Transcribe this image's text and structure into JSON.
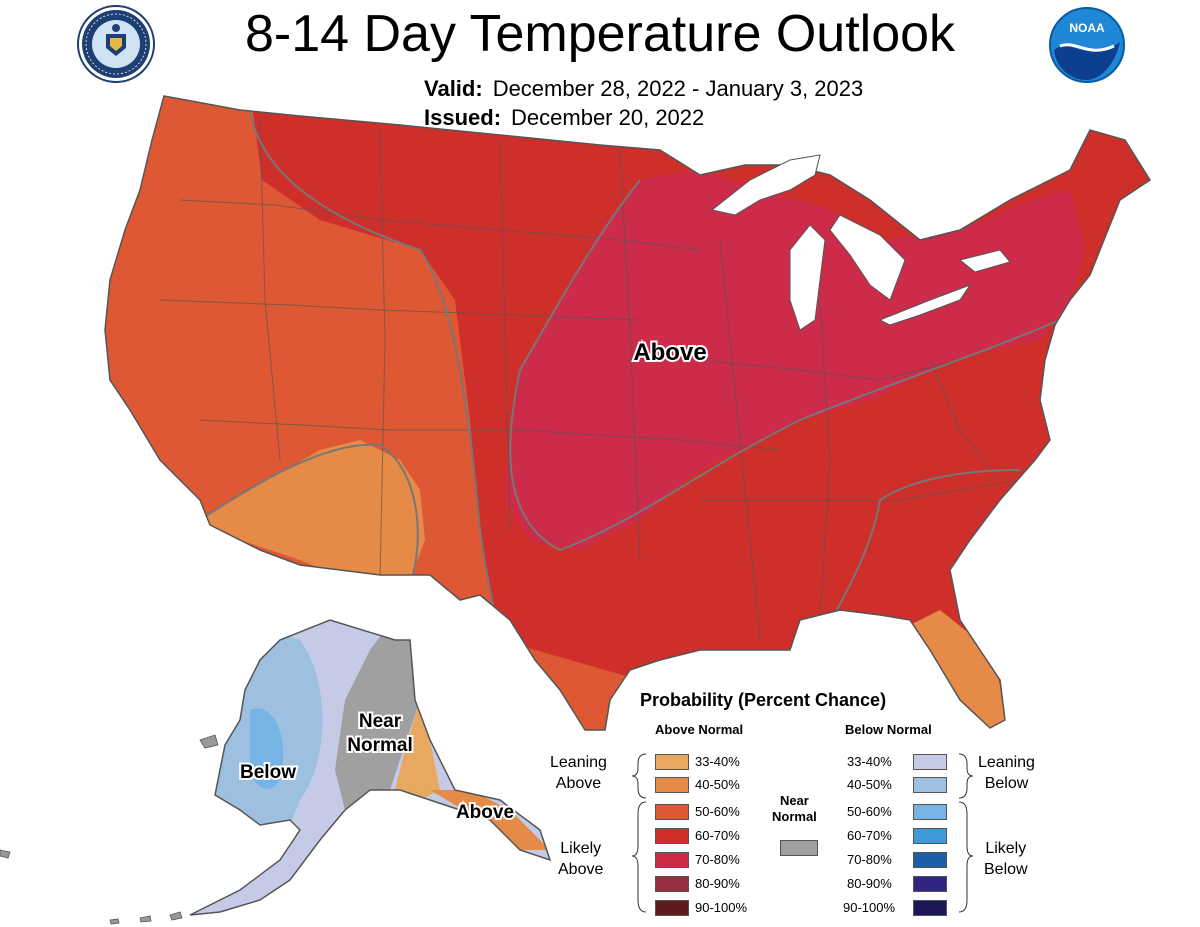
{
  "header": {
    "title": "8-14 Day Temperature Outlook",
    "valid_label": "Valid:",
    "valid_value": "December 28, 2022 - January 3, 2023",
    "issued_label": "Issued:",
    "issued_value": "December 20, 2022"
  },
  "logos": {
    "left": "doc-seal",
    "right": "noaa-logo",
    "noaa_text": "NOAA"
  },
  "map": {
    "region_labels": {
      "conus_above": "Above",
      "alaska_below": "Below",
      "alaska_near_normal_line1": "Near",
      "alaska_near_normal_line2": "Normal",
      "alaska_above": "Above"
    },
    "colors": {
      "above_33_40": "#e8a860",
      "above_40_50": "#e68a48",
      "above_50_60": "#df5834",
      "above_60_70": "#cf2f2a",
      "above_70_80": "#cd2b4a",
      "above_80_90": "#963040",
      "above_90_100": "#5f1a20",
      "below_33_40": "#c5cbe6",
      "below_40_50": "#9dbfe0",
      "below_50_60": "#75b4e5",
      "below_60_70": "#3e9ad8",
      "below_70_80": "#1a5fa8",
      "below_80_90": "#2e2680",
      "below_90_100": "#1c1757",
      "near_normal": "#a0a0a0",
      "lakes": "#ffffff",
      "boundary": "#555555"
    }
  },
  "legend": {
    "title": "Probability (Percent Chance)",
    "above_header": "Above Normal",
    "below_header": "Below Normal",
    "leaning_above": [
      "Leaning",
      "Above"
    ],
    "likely_above": [
      "Likely",
      "Above"
    ],
    "leaning_below": [
      "Leaning",
      "Below"
    ],
    "likely_below": [
      "Likely",
      "Below"
    ],
    "near_normal": [
      "Near",
      "Normal"
    ],
    "above_rows": [
      "33-40%",
      "40-50%",
      "50-60%",
      "60-70%",
      "70-80%",
      "80-90%",
      "90-100%"
    ],
    "below_rows": [
      "33-40%",
      "40-50%",
      "50-60%",
      "60-70%",
      "70-80%",
      "80-90%",
      "90-100%"
    ]
  }
}
